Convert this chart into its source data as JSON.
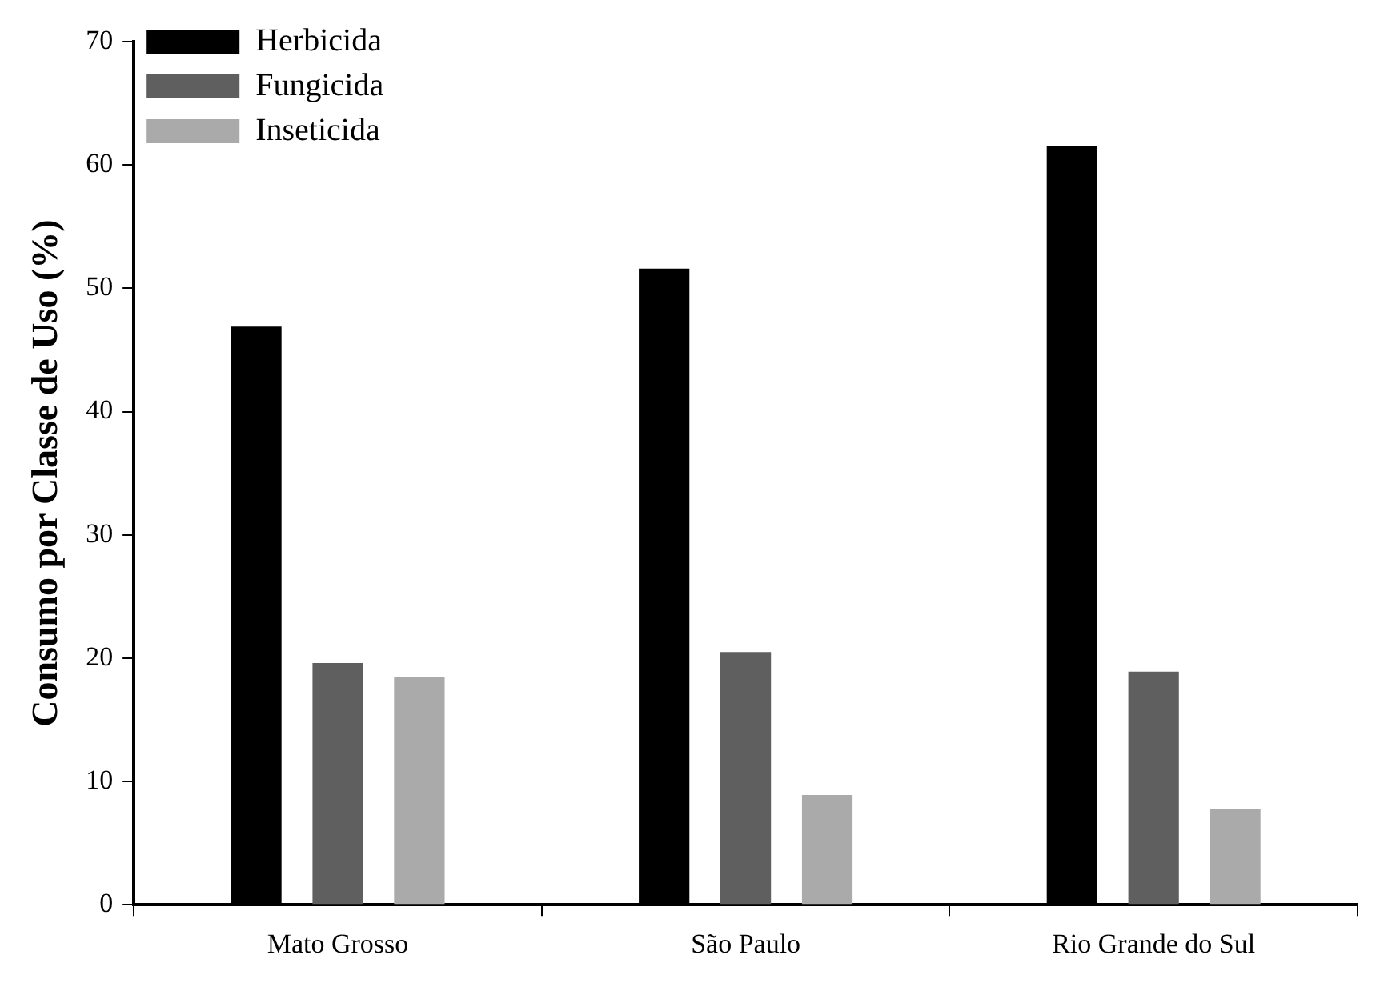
{
  "chart_data": {
    "type": "bar",
    "ylabel": "Consumo por Classe de Uso (%)",
    "categories": [
      "Mato Grosso",
      "São Paulo",
      "Rio Grande do Sul"
    ],
    "series": [
      {
        "name": "Herbicida",
        "color": "#000000",
        "values": [
          46.9,
          51.6,
          61.5
        ]
      },
      {
        "name": "Fungicida",
        "color": "#5f5f5f",
        "values": [
          19.6,
          20.5,
          18.9
        ]
      },
      {
        "name": "Inseticida",
        "color": "#aaaaaa",
        "values": [
          18.5,
          8.9,
          7.8
        ]
      }
    ],
    "ylim": [
      0,
      70
    ],
    "yticks": [
      0,
      10,
      20,
      30,
      40,
      50,
      60,
      70
    ],
    "grid": false,
    "legend": "top left"
  }
}
